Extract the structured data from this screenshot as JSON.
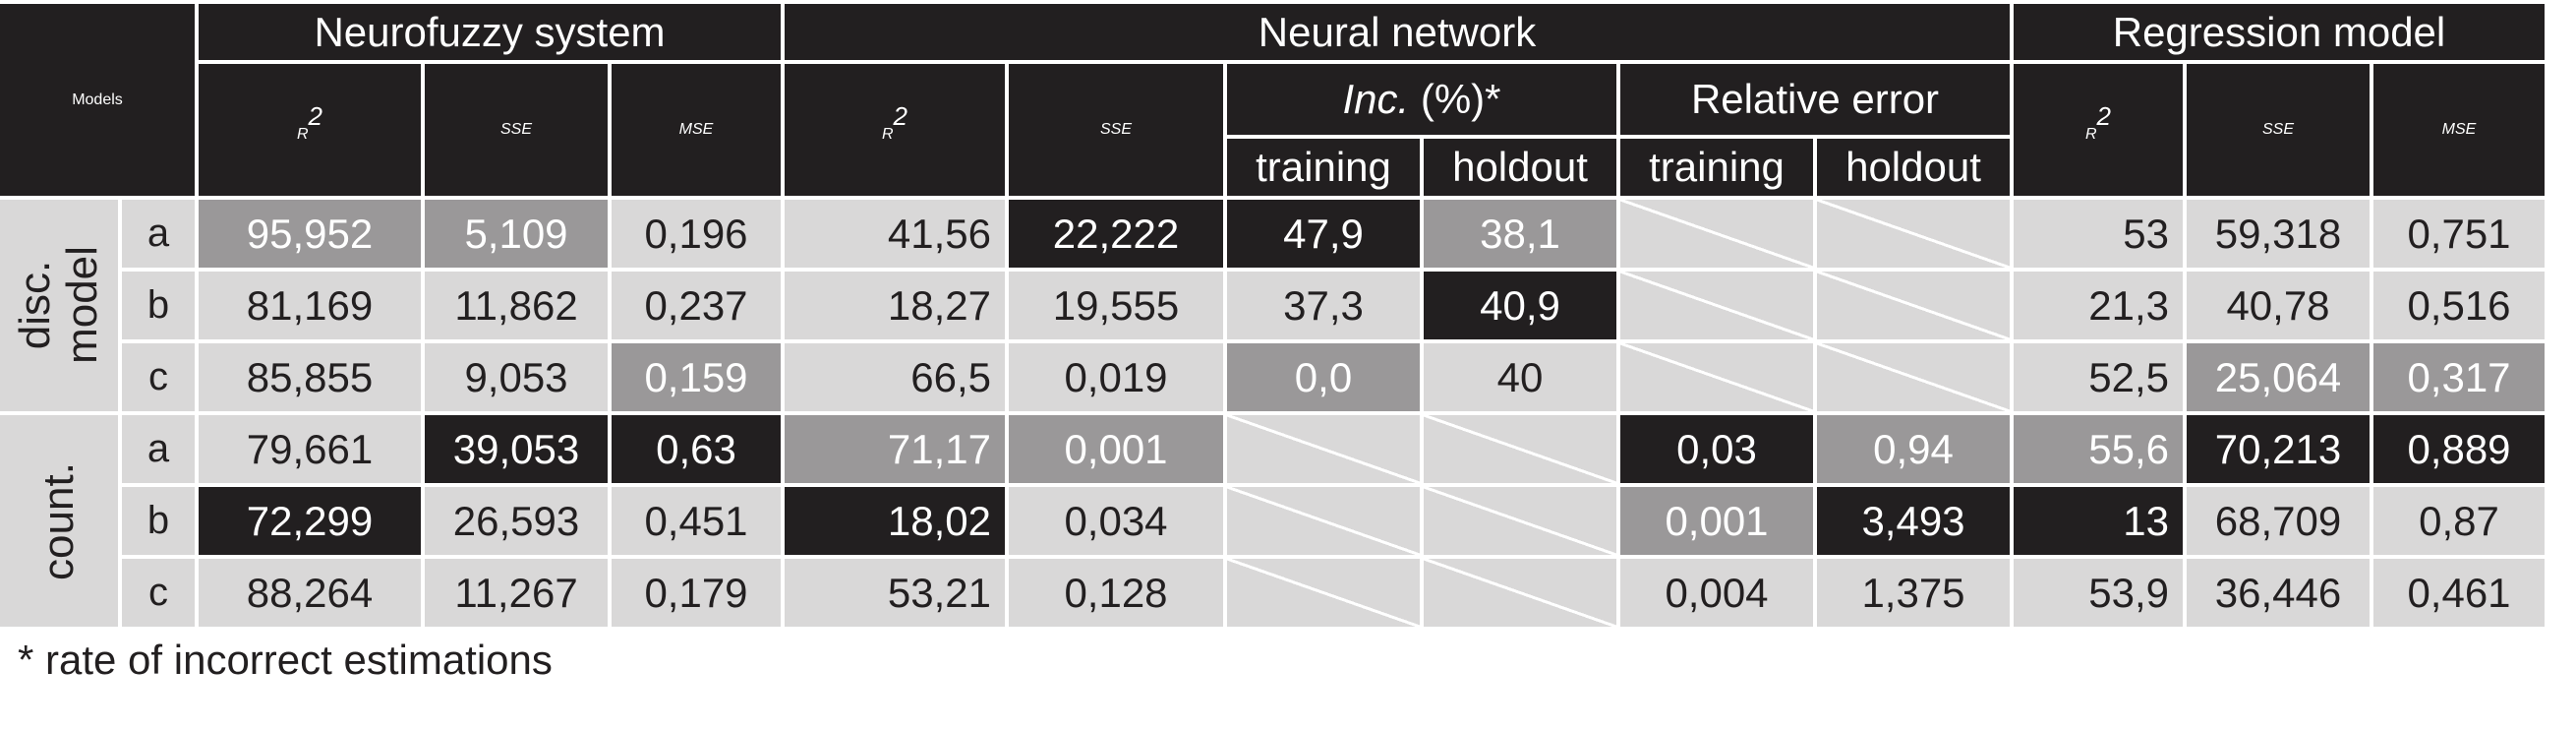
{
  "table": {
    "header": {
      "models": "Models",
      "groups": [
        "Neurofuzzy system",
        "Neural network",
        "Regression model"
      ],
      "inc_label": "Inc.",
      "inc_suffix": " (%)*",
      "relative_error": "Relative error",
      "r2_base": "R",
      "r2_sup": "2",
      "sse": "SSE",
      "mse": "MSE",
      "training": "training",
      "holdout": "holdout"
    },
    "row_groups": [
      {
        "label_line1": "disc.",
        "label_line2": "model",
        "rows": [
          {
            "id": "a",
            "cells": [
              {
                "v": "95,952",
                "s": "gy"
              },
              {
                "v": "5,109",
                "s": "gy"
              },
              {
                "v": "0,196",
                "s": ""
              },
              {
                "v": "41,56",
                "s": ""
              },
              {
                "v": "22,222",
                "s": "dk"
              },
              {
                "v": "47,9",
                "s": "dk"
              },
              {
                "v": "38,1",
                "s": "gy"
              },
              {
                "v": "",
                "s": "na"
              },
              {
                "v": "",
                "s": "na"
              },
              {
                "v": "53",
                "s": ""
              },
              {
                "v": "59,318",
                "s": ""
              },
              {
                "v": "0,751",
                "s": ""
              }
            ]
          },
          {
            "id": "b",
            "cells": [
              {
                "v": "81,169",
                "s": ""
              },
              {
                "v": "11,862",
                "s": ""
              },
              {
                "v": "0,237",
                "s": ""
              },
              {
                "v": "18,27",
                "s": ""
              },
              {
                "v": "19,555",
                "s": ""
              },
              {
                "v": "37,3",
                "s": ""
              },
              {
                "v": "40,9",
                "s": "dk"
              },
              {
                "v": "",
                "s": "na"
              },
              {
                "v": "",
                "s": "na"
              },
              {
                "v": "21,3",
                "s": ""
              },
              {
                "v": "40,78",
                "s": ""
              },
              {
                "v": "0,516",
                "s": ""
              }
            ]
          },
          {
            "id": "c",
            "cells": [
              {
                "v": "85,855",
                "s": ""
              },
              {
                "v": "9,053",
                "s": ""
              },
              {
                "v": "0,159",
                "s": "gy"
              },
              {
                "v": "66,5",
                "s": ""
              },
              {
                "v": "0,019",
                "s": ""
              },
              {
                "v": "0,0",
                "s": "gy"
              },
              {
                "v": "40",
                "s": ""
              },
              {
                "v": "",
                "s": "na"
              },
              {
                "v": "",
                "s": "na"
              },
              {
                "v": "52,5",
                "s": ""
              },
              {
                "v": "25,064",
                "s": "gy"
              },
              {
                "v": "0,317",
                "s": "gy"
              }
            ]
          }
        ]
      },
      {
        "label_line1": "count.",
        "label_line2": "",
        "rows": [
          {
            "id": "a",
            "cells": [
              {
                "v": "79,661",
                "s": ""
              },
              {
                "v": "39,053",
                "s": "dk"
              },
              {
                "v": "0,63",
                "s": "dk"
              },
              {
                "v": "71,17",
                "s": "gy"
              },
              {
                "v": "0,001",
                "s": "gy"
              },
              {
                "v": "",
                "s": "na"
              },
              {
                "v": "",
                "s": "na"
              },
              {
                "v": "0,03",
                "s": "dk"
              },
              {
                "v": "0,94",
                "s": "gy"
              },
              {
                "v": "55,6",
                "s": "gy"
              },
              {
                "v": "70,213",
                "s": "dk"
              },
              {
                "v": "0,889",
                "s": "dk"
              }
            ]
          },
          {
            "id": "b",
            "cells": [
              {
                "v": "72,299",
                "s": "dk"
              },
              {
                "v": "26,593",
                "s": ""
              },
              {
                "v": "0,451",
                "s": ""
              },
              {
                "v": "18,02",
                "s": "dk"
              },
              {
                "v": "0,034",
                "s": ""
              },
              {
                "v": "",
                "s": "na"
              },
              {
                "v": "",
                "s": "na"
              },
              {
                "v": "0,001",
                "s": "gy"
              },
              {
                "v": "3,493",
                "s": "dk"
              },
              {
                "v": "13",
                "s": "dk"
              },
              {
                "v": "68,709",
                "s": ""
              },
              {
                "v": "0,87",
                "s": ""
              }
            ]
          },
          {
            "id": "c",
            "cells": [
              {
                "v": "88,264",
                "s": ""
              },
              {
                "v": "11,267",
                "s": ""
              },
              {
                "v": "0,179",
                "s": ""
              },
              {
                "v": "53,21",
                "s": ""
              },
              {
                "v": "0,128",
                "s": ""
              },
              {
                "v": "",
                "s": "na"
              },
              {
                "v": "",
                "s": "na"
              },
              {
                "v": "0,004",
                "s": ""
              },
              {
                "v": "1,375",
                "s": ""
              },
              {
                "v": "53,9",
                "s": ""
              },
              {
                "v": "36,446",
                "s": ""
              },
              {
                "v": "0,461",
                "s": ""
              }
            ]
          }
        ]
      }
    ]
  },
  "footnote": "* rate of incorrect estimations"
}
